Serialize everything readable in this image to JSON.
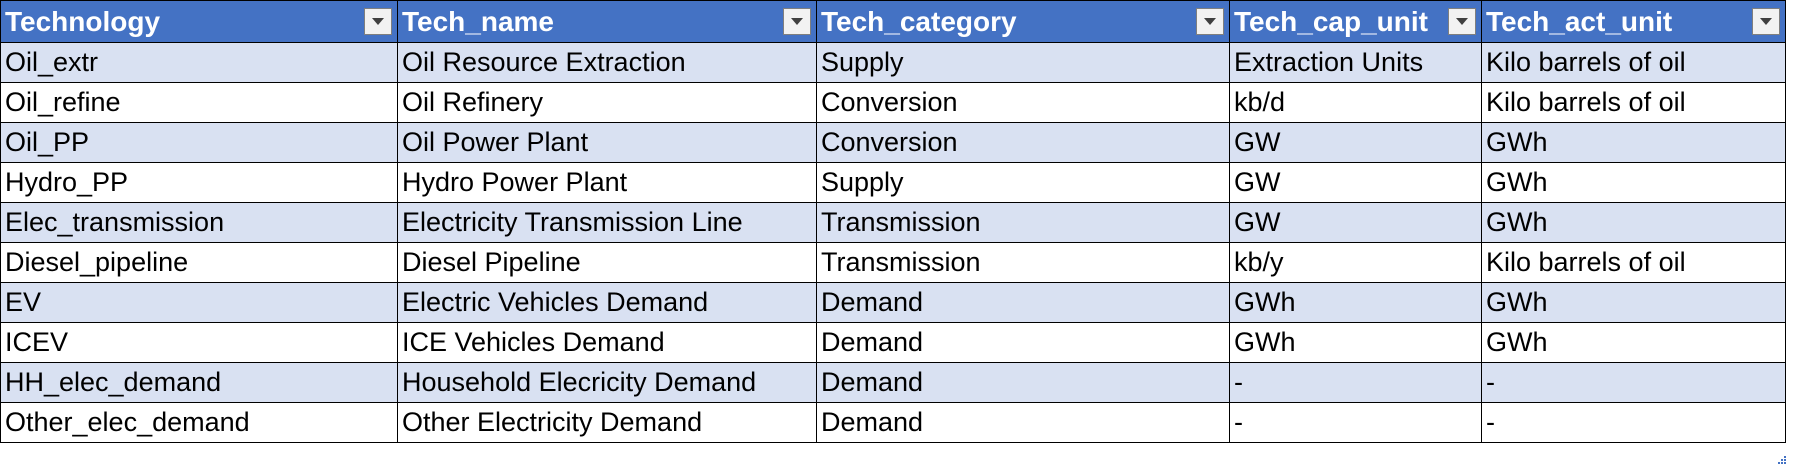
{
  "table": {
    "columns": [
      {
        "key": "technology",
        "label": "Technology",
        "filter_icon": "filter-dropdown-icon"
      },
      {
        "key": "tech_name",
        "label": "Tech_name",
        "filter_icon": "filter-dropdown-icon"
      },
      {
        "key": "tech_category",
        "label": "Tech_category",
        "filter_icon": "filter-dropdown-icon"
      },
      {
        "key": "tech_cap_unit",
        "label": "Tech_cap_unit",
        "filter_icon": "filter-dropdown-icon"
      },
      {
        "key": "tech_act_unit",
        "label": "Tech_act_unit",
        "filter_icon": "filter-dropdown-icon"
      }
    ],
    "rows": [
      [
        "Oil_extr",
        "Oil Resource Extraction",
        "Supply",
        "Extraction Units",
        "Kilo barrels of oil"
      ],
      [
        "Oil_refine",
        "Oil Refinery",
        "Conversion",
        "kb/d",
        "Kilo barrels of oil"
      ],
      [
        "Oil_PP",
        "Oil Power Plant",
        "Conversion",
        "GW",
        "GWh"
      ],
      [
        "Hydro_PP",
        "Hydro Power Plant",
        "Supply",
        "GW",
        "GWh"
      ],
      [
        "Elec_transmission",
        "Electricity Transmission Line",
        "Transmission",
        "GW",
        "GWh"
      ],
      [
        "Diesel_pipeline",
        "Diesel Pipeline",
        "Transmission",
        "kb/y",
        "Kilo barrels of oil"
      ],
      [
        "EV",
        "Electric Vehicles Demand",
        "Demand",
        "GWh",
        "GWh"
      ],
      [
        "ICEV",
        "ICE Vehicles Demand",
        "Demand",
        "GWh",
        "GWh"
      ],
      [
        "HH_elec_demand",
        "Household Elecricity Demand",
        "Demand",
        "-",
        "-"
      ],
      [
        "Other_elec_demand",
        "Other Electricity Demand",
        "Demand",
        "-",
        "-"
      ]
    ]
  },
  "colors": {
    "header_background": "#4472c4",
    "header_text": "#ffffff",
    "band_row": "#d9e1f2",
    "plain_row": "#ffffff",
    "grid_line": "#000000",
    "resize_handle": "#4472c4"
  },
  "icons": {
    "filter": "filter-dropdown-icon",
    "resize": "table-resize-handle-icon"
  }
}
